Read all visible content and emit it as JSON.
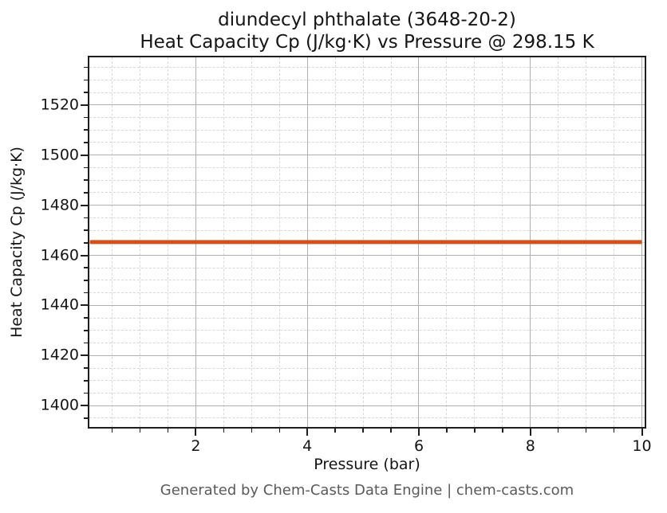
{
  "figure": {
    "title_line1": "diundecyl phthalate (3648-20-2)",
    "title_line2": "Heat Capacity Cp (J/kg·K) vs Pressure @ 298.15 K",
    "footer": "Generated by Chem-Casts Data Engine | chem-casts.com"
  },
  "chart_data": {
    "type": "line",
    "title": "diundecyl phthalate (3648-20-2)\nHeat Capacity Cp (J/kg·K) vs Pressure @ 298.15 K",
    "xlabel": "Pressure (bar)",
    "ylabel": "Heat Capacity Cp (J/kg·K)",
    "xlim": [
      0.09,
      10.05
    ],
    "ylim": [
      1391.5,
      1539
    ],
    "x_major_ticks": [
      2,
      4,
      6,
      8,
      10
    ],
    "x_minor_step": 0.5,
    "y_major_ticks": [
      1400,
      1420,
      1440,
      1460,
      1480,
      1500,
      1520
    ],
    "y_minor_step": 5,
    "grid": {
      "major": true,
      "minor": true,
      "major_style": "solid",
      "minor_style": "dashed"
    },
    "legend": "none",
    "series": [
      {
        "name": "Heat Capacity Cp",
        "x": [
          0.1,
          10.0
        ],
        "y": [
          1465.3,
          1465.3
        ],
        "color": "#d2521e",
        "linewidth": 5
      }
    ]
  },
  "colors": {
    "background": "#ffffff",
    "text": "#151515",
    "footer_text": "#5a5a5a",
    "spine": "#1e1e1e",
    "grid_major": "#b0b0b0",
    "grid_minor": "#d8d8d8",
    "series_line": "#d2521e"
  }
}
